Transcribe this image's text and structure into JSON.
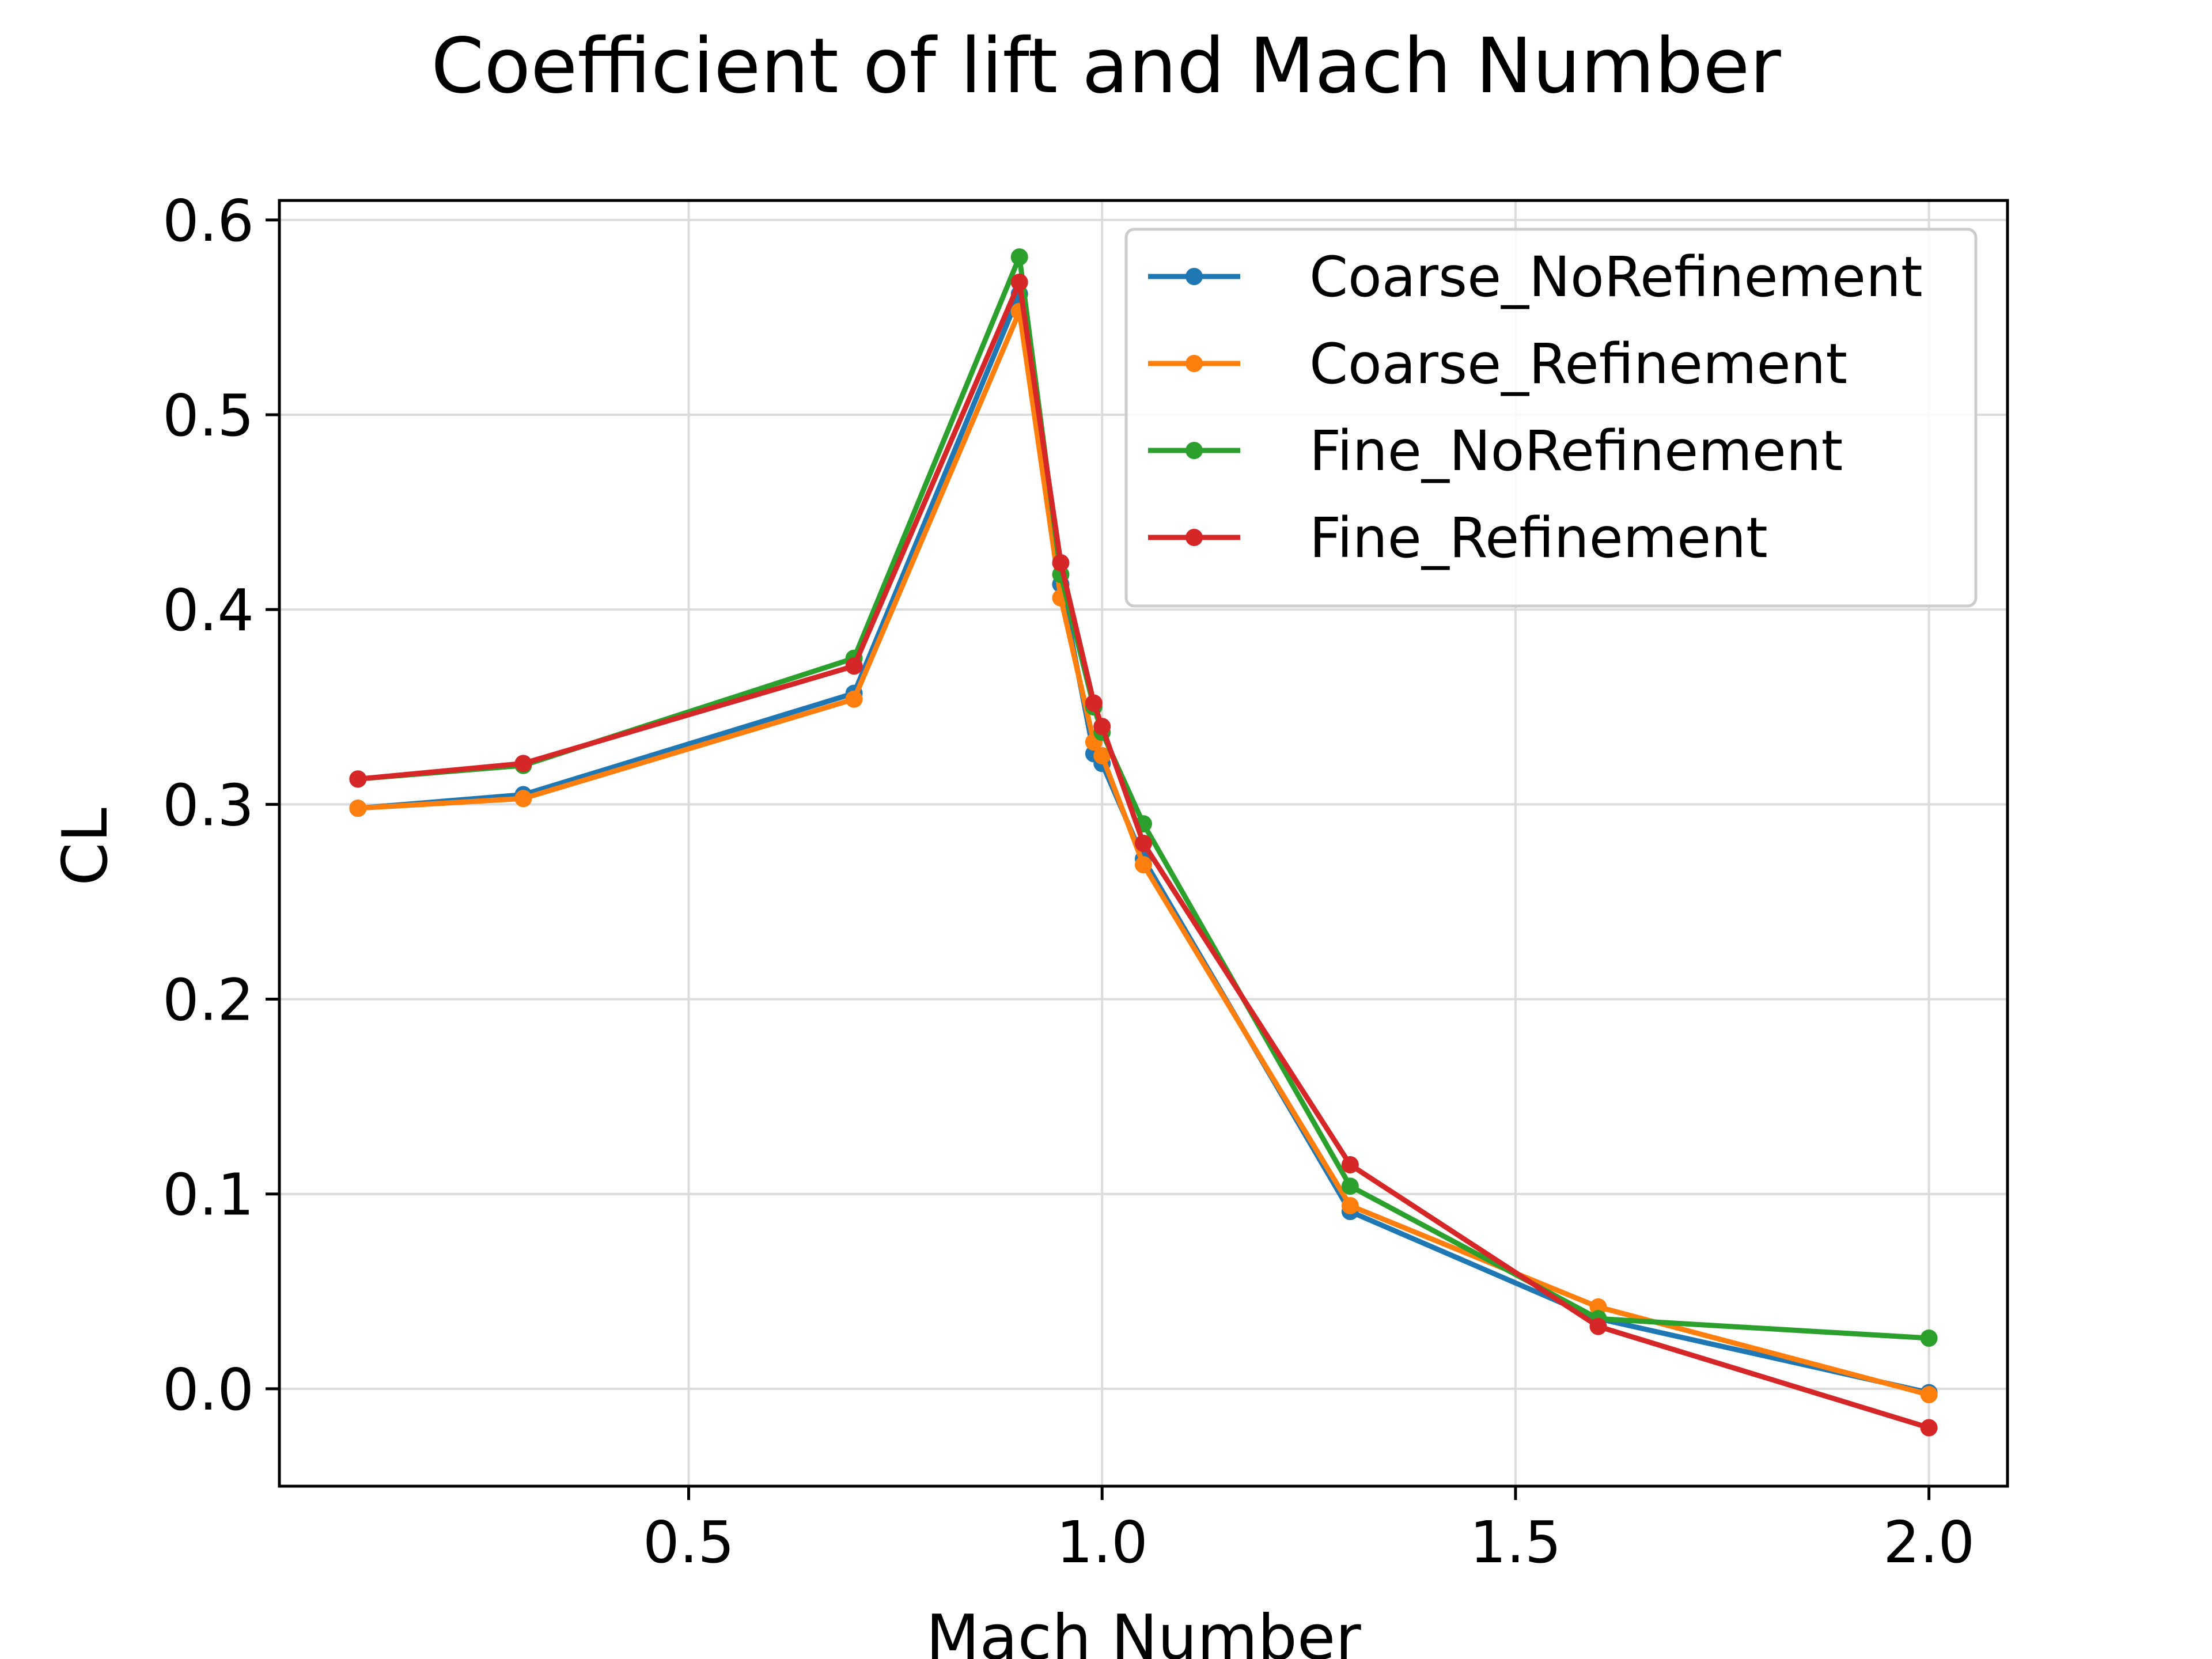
{
  "chart_data": {
    "type": "line",
    "title": "Coefficient of lift and Mach Number",
    "xlabel": "Mach Number",
    "ylabel": "CL",
    "xlim": [
      0.005,
      2.095
    ],
    "ylim": [
      -0.05,
      0.61
    ],
    "xticks": [
      0.5,
      1.0,
      1.5,
      2.0
    ],
    "xtick_labels": [
      "0.5",
      "1.0",
      "1.5",
      "2.0"
    ],
    "yticks": [
      0.0,
      0.1,
      0.2,
      0.3,
      0.4,
      0.5,
      0.6
    ],
    "ytick_labels": [
      "0.0",
      "0.1",
      "0.2",
      "0.3",
      "0.4",
      "0.5",
      "0.6"
    ],
    "grid": true,
    "legend_position": "top-right",
    "series": [
      {
        "name": "Coarse_NoRefinement",
        "color": "#1f77b4",
        "x": [
          0.1,
          0.3,
          0.7,
          0.9,
          0.95,
          0.99,
          1.0,
          1.05,
          1.3,
          1.6,
          2.0
        ],
        "y": [
          0.298,
          0.305,
          0.357,
          0.562,
          0.413,
          0.326,
          0.321,
          0.272,
          0.091,
          0.036,
          -0.002
        ]
      },
      {
        "name": "Coarse_Refinement",
        "color": "#ff7f0e",
        "x": [
          0.1,
          0.3,
          0.7,
          0.9,
          0.95,
          0.99,
          1.0,
          1.05,
          1.3,
          1.6,
          2.0
        ],
        "y": [
          0.298,
          0.303,
          0.354,
          0.553,
          0.406,
          0.332,
          0.325,
          0.269,
          0.094,
          0.042,
          -0.003
        ]
      },
      {
        "name": "Fine_NoRefinement",
        "color": "#2ca02c",
        "x": [
          0.1,
          0.3,
          0.7,
          0.9,
          0.95,
          0.99,
          1.0,
          1.05,
          1.3,
          1.6,
          2.0
        ],
        "y": [
          0.313,
          0.32,
          0.375,
          0.581,
          0.418,
          0.35,
          0.337,
          0.29,
          0.104,
          0.036,
          0.026
        ]
      },
      {
        "name": "Fine_Refinement",
        "color": "#d62728",
        "x": [
          0.1,
          0.3,
          0.7,
          0.9,
          0.95,
          0.99,
          1.0,
          1.05,
          1.3,
          1.6,
          2.0
        ],
        "y": [
          0.313,
          0.321,
          0.371,
          0.568,
          0.424,
          0.352,
          0.34,
          0.28,
          0.115,
          0.032,
          -0.02
        ]
      }
    ]
  }
}
